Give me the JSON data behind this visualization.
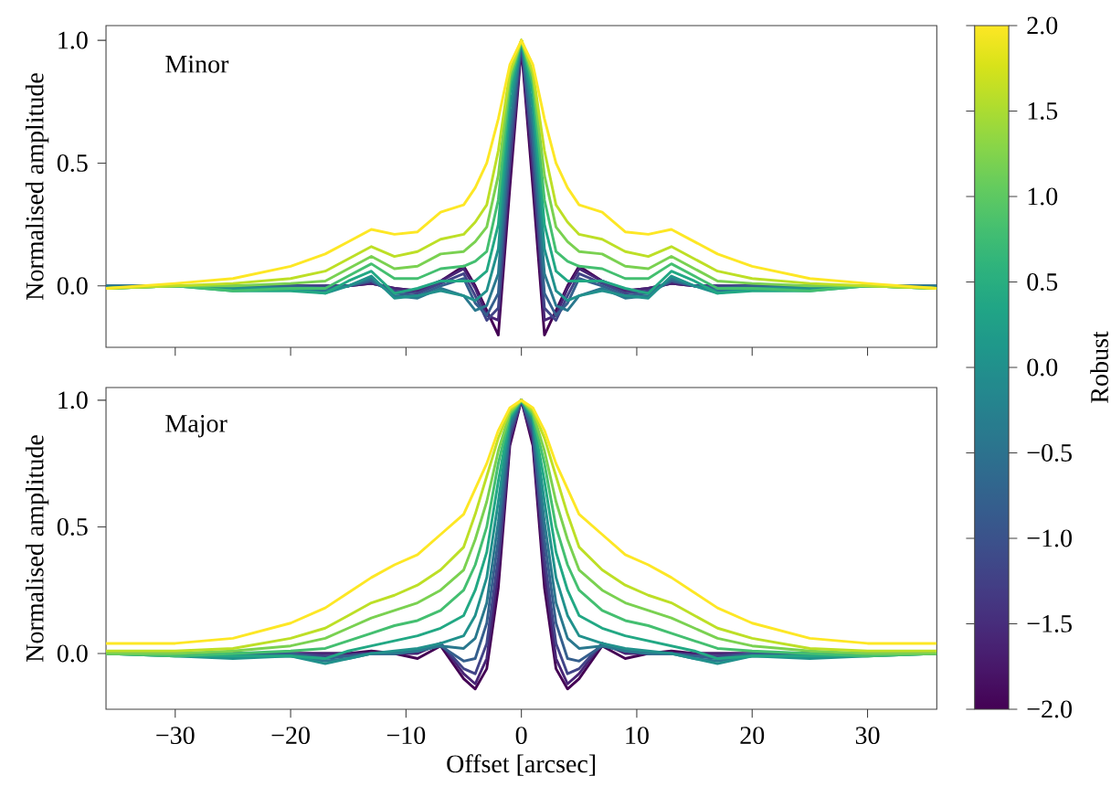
{
  "chart_data": [
    {
      "type": "line",
      "ylabel": "Normalised amplitude",
      "annotations": [
        "Minor"
      ],
      "xlim": [
        -36,
        36
      ],
      "ylim": [
        -0.25,
        1.06
      ],
      "xticks": [
        -30,
        -20,
        -10,
        0,
        10,
        20,
        30
      ],
      "yticks": [
        {
          "value": 0,
          "label": "0.0"
        },
        {
          "value": 0.5,
          "label": "0.5"
        },
        {
          "value": 1,
          "label": "1.0"
        }
      ],
      "tick_labels": "y",
      "grid": false,
      "marker": "none",
      "line_style": "solid",
      "clabel": "Robust",
      "clim": [
        -2,
        2
      ],
      "cticks": [
        {
          "value": -2,
          "label": "−2.0"
        },
        {
          "value": -1.5,
          "label": "−1.5"
        },
        {
          "value": -1,
          "label": "−1.0"
        },
        {
          "value": -0.5,
          "label": "−0.5"
        },
        {
          "value": 0,
          "label": "0.0"
        },
        {
          "value": 0.5,
          "label": "0.5"
        },
        {
          "value": 1,
          "label": "1.0"
        },
        {
          "value": 1.5,
          "label": "1.5"
        },
        {
          "value": 2,
          "label": "2.0"
        }
      ],
      "x": [
        -36,
        -30,
        -25,
        -20,
        -17,
        -15,
        -13,
        -11,
        -9,
        -7,
        -5,
        -4,
        -3,
        -2,
        -1,
        0,
        1,
        2,
        3,
        4,
        5,
        7,
        9,
        11,
        13,
        15,
        17,
        20,
        25,
        30,
        36
      ],
      "series": [
        {
          "color": "#440154",
          "values": [
            null,
            null,
            null,
            null,
            0,
            0,
            0.01,
            -0.01,
            -0.02,
            0.02,
            0.08,
            0,
            -0.1,
            -0.2,
            0.4,
            0.97,
            0.4,
            -0.2,
            -0.1,
            0,
            0.08,
            0.02,
            -0.02,
            -0.01,
            0.01,
            0,
            0,
            null,
            null,
            null,
            null
          ]
        },
        {
          "color": "#482475",
          "values": [
            null,
            null,
            0,
            0,
            0,
            0,
            0.01,
            -0.01,
            -0.02,
            0.02,
            0.07,
            -0.01,
            -0.12,
            -0.14,
            0.46,
            0.98,
            0.46,
            -0.14,
            -0.12,
            -0.01,
            0.07,
            0.02,
            -0.02,
            -0.01,
            0.01,
            0,
            0,
            0,
            0,
            null,
            null
          ]
        },
        {
          "color": "#414487",
          "values": [
            null,
            null,
            0,
            0,
            0,
            0,
            0.02,
            -0.02,
            -0.03,
            0.01,
            0.05,
            -0.04,
            -0.14,
            -0.09,
            0.52,
            0.99,
            0.52,
            -0.09,
            -0.14,
            -0.04,
            0.05,
            0.01,
            -0.03,
            -0.02,
            0.02,
            0,
            0,
            0,
            0,
            null,
            null
          ]
        },
        {
          "color": "#355f8d",
          "values": [
            0,
            0,
            0,
            0,
            -0.01,
            0,
            0.02,
            -0.03,
            -0.04,
            0,
            0.03,
            -0.07,
            -0.12,
            -0.03,
            0.58,
            1,
            0.58,
            -0.03,
            -0.12,
            -0.07,
            0.03,
            0,
            -0.04,
            -0.03,
            0.02,
            0,
            -0.01,
            0,
            0,
            0,
            0
          ]
        },
        {
          "color": "#2a788e",
          "values": [
            0,
            0,
            0,
            -0.01,
            -0.02,
            0,
            0.03,
            -0.04,
            -0.05,
            -0.01,
            -0.04,
            -0.1,
            -0.08,
            0.05,
            0.65,
            1,
            0.65,
            0.05,
            -0.08,
            -0.1,
            -0.04,
            -0.01,
            -0.05,
            -0.04,
            0.03,
            0,
            -0.02,
            -0.01,
            0,
            0,
            0
          ]
        },
        {
          "color": "#21918c",
          "values": [
            -0.01,
            0,
            -0.01,
            -0.01,
            -0.03,
            0,
            0.04,
            -0.05,
            -0.04,
            -0.02,
            -0.04,
            -0.06,
            -0.02,
            0.15,
            0.72,
            1,
            0.72,
            0.15,
            -0.02,
            -0.06,
            -0.04,
            -0.02,
            -0.04,
            -0.05,
            0.04,
            0,
            -0.03,
            -0.01,
            -0.01,
            0,
            -0.01
          ]
        },
        {
          "color": "#22a884",
          "values": [
            -0.01,
            0,
            -0.02,
            -0.02,
            -0.03,
            0.02,
            0.06,
            -0.03,
            -0.01,
            0.02,
            0.02,
            0.02,
            0.06,
            0.25,
            0.78,
            1,
            0.78,
            0.25,
            0.06,
            0.02,
            0.02,
            0.02,
            -0.01,
            -0.03,
            0.06,
            0.02,
            -0.03,
            -0.02,
            -0.02,
            0,
            -0.01
          ]
        },
        {
          "color": "#44bf70",
          "values": [
            -0.01,
            0,
            -0.02,
            -0.01,
            -0.01,
            0.04,
            0.09,
            0.03,
            0.03,
            0.07,
            0.08,
            0.1,
            0.14,
            0.35,
            0.82,
            1,
            0.82,
            0.35,
            0.14,
            0.1,
            0.08,
            0.07,
            0.03,
            0.03,
            0.09,
            0.04,
            -0.01,
            -0.01,
            -0.02,
            0,
            -0.01
          ]
        },
        {
          "color": "#7ad151",
          "values": [
            -0.01,
            0,
            0,
            0.01,
            0.02,
            0.07,
            0.12,
            0.07,
            0.08,
            0.13,
            0.14,
            0.18,
            0.24,
            0.45,
            0.85,
            1,
            0.85,
            0.45,
            0.24,
            0.18,
            0.14,
            0.13,
            0.08,
            0.07,
            0.12,
            0.07,
            0.02,
            0.01,
            0,
            0,
            -0.01
          ]
        },
        {
          "color": "#bddf26",
          "values": [
            -0.01,
            0,
            0.01,
            0.03,
            0.06,
            0.11,
            0.16,
            0.12,
            0.14,
            0.19,
            0.21,
            0.26,
            0.33,
            0.55,
            0.87,
            1,
            0.87,
            0.55,
            0.33,
            0.26,
            0.21,
            0.19,
            0.14,
            0.12,
            0.16,
            0.11,
            0.06,
            0.03,
            0.01,
            0,
            -0.01
          ]
        },
        {
          "color": "#fde725",
          "values": [
            -0.01,
            0.01,
            0.03,
            0.08,
            0.13,
            0.18,
            0.23,
            0.21,
            0.22,
            0.3,
            0.33,
            0.4,
            0.5,
            0.68,
            0.9,
            1.0,
            0.9,
            0.68,
            0.5,
            0.4,
            0.33,
            0.3,
            0.22,
            0.21,
            0.23,
            0.18,
            0.13,
            0.08,
            0.03,
            0.01,
            -0.01
          ]
        }
      ]
    },
    {
      "type": "line",
      "xlabel": "Offset [arcsec]",
      "ylabel": "Normalised amplitude",
      "annotations": [
        "Major"
      ],
      "xlim": [
        -36,
        36
      ],
      "ylim": [
        -0.22,
        1.05
      ],
      "xticks": [
        {
          "value": -30,
          "label": "−30"
        },
        {
          "value": -20,
          "label": "−20"
        },
        {
          "value": -10,
          "label": "−10"
        },
        0,
        10,
        20,
        30
      ],
      "yticks": [
        {
          "value": 0,
          "label": "0.0"
        },
        {
          "value": 0.5,
          "label": "0.5"
        },
        {
          "value": 1,
          "label": "1.0"
        }
      ],
      "grid": false,
      "marker": "none",
      "line_style": "solid",
      "x": [
        -36,
        -30,
        -25,
        -20,
        -17,
        -15,
        -13,
        -11,
        -9,
        -7,
        -5,
        -4,
        -3,
        -2,
        -1,
        0,
        1,
        2,
        3,
        4,
        5,
        7,
        9,
        11,
        13,
        15,
        17,
        20,
        25,
        30,
        36
      ],
      "series": [
        {
          "color": "#440154",
          "values": [
            null,
            null,
            0,
            0,
            0,
            0,
            0.01,
            0,
            -0.02,
            0.03,
            -0.1,
            -0.14,
            -0.06,
            0.26,
            0.82,
            1,
            0.82,
            0.26,
            -0.06,
            -0.14,
            -0.1,
            0.03,
            -0.02,
            0,
            0.01,
            0,
            0,
            0,
            0,
            null,
            null
          ]
        },
        {
          "color": "#482475",
          "values": [
            null,
            null,
            0,
            0,
            0,
            0,
            0,
            0,
            0,
            0.04,
            -0.08,
            -0.12,
            -0.02,
            0.32,
            0.84,
            1,
            0.84,
            0.32,
            -0.02,
            -0.12,
            -0.08,
            0.04,
            0,
            0,
            0,
            0,
            0,
            0,
            0,
            null,
            null
          ]
        },
        {
          "color": "#414487",
          "values": [
            null,
            null,
            0,
            0,
            -0.01,
            -0.01,
            0,
            0,
            0.01,
            0.04,
            -0.06,
            -0.08,
            0.04,
            0.38,
            0.86,
            1,
            0.86,
            0.38,
            0.04,
            -0.08,
            -0.06,
            0.04,
            0.01,
            0,
            0,
            -0.01,
            -0.01,
            0,
            0,
            null,
            null
          ]
        },
        {
          "color": "#355f8d",
          "values": [
            0,
            0,
            0,
            0,
            -0.02,
            -0.01,
            0,
            0,
            0.01,
            0.03,
            -0.03,
            -0.02,
            0.12,
            0.45,
            0.88,
            1,
            0.88,
            0.45,
            0.12,
            -0.02,
            -0.03,
            0.03,
            0.01,
            0,
            0,
            -0.01,
            -0.02,
            0,
            0,
            0,
            0
          ]
        },
        {
          "color": "#2a788e",
          "values": [
            0,
            0,
            -0.01,
            -0.01,
            -0.03,
            -0.02,
            0,
            0,
            0.01,
            0.03,
            0.02,
            0.06,
            0.2,
            0.52,
            0.9,
            1,
            0.9,
            0.52,
            0.2,
            0.06,
            0.02,
            0.03,
            0.01,
            0,
            0,
            -0.02,
            -0.03,
            -0.01,
            -0.01,
            0,
            0
          ]
        },
        {
          "color": "#21918c",
          "values": [
            0,
            -0.01,
            -0.02,
            -0.01,
            -0.04,
            -0.02,
            0,
            0.01,
            0.02,
            0.04,
            0.07,
            0.15,
            0.3,
            0.6,
            0.92,
            1,
            0.92,
            0.6,
            0.3,
            0.15,
            0.07,
            0.04,
            0.02,
            0.01,
            0,
            -0.02,
            -0.04,
            -0.01,
            -0.02,
            -0.01,
            0
          ]
        },
        {
          "color": "#22a884",
          "values": [
            0,
            -0.01,
            -0.01,
            -0.01,
            -0.02,
            0.01,
            0.03,
            0.05,
            0.07,
            0.1,
            0.15,
            0.25,
            0.4,
            0.68,
            0.93,
            1,
            0.93,
            0.68,
            0.4,
            0.25,
            0.15,
            0.1,
            0.07,
            0.05,
            0.03,
            0.01,
            -0.02,
            -0.01,
            -0.01,
            -0.01,
            0
          ]
        },
        {
          "color": "#44bf70",
          "values": [
            0,
            -0.01,
            0,
            0.01,
            0.02,
            0.05,
            0.08,
            0.11,
            0.13,
            0.17,
            0.25,
            0.35,
            0.5,
            0.75,
            0.94,
            1,
            0.94,
            0.75,
            0.5,
            0.35,
            0.25,
            0.17,
            0.13,
            0.11,
            0.08,
            0.05,
            0.02,
            0.01,
            0,
            -0.01,
            0
          ]
        },
        {
          "color": "#7ad151",
          "values": [
            0,
            0,
            0.01,
            0.03,
            0.06,
            0.1,
            0.14,
            0.17,
            0.2,
            0.25,
            0.33,
            0.45,
            0.6,
            0.8,
            0.95,
            1,
            0.95,
            0.8,
            0.6,
            0.45,
            0.33,
            0.25,
            0.2,
            0.17,
            0.14,
            0.1,
            0.06,
            0.03,
            0.01,
            0,
            0
          ]
        },
        {
          "color": "#bddf26",
          "values": [
            0.01,
            0.01,
            0.02,
            0.06,
            0.1,
            0.15,
            0.2,
            0.23,
            0.27,
            0.33,
            0.42,
            0.55,
            0.7,
            0.85,
            0.96,
            1,
            0.96,
            0.85,
            0.7,
            0.55,
            0.42,
            0.33,
            0.27,
            0.23,
            0.2,
            0.15,
            0.1,
            0.06,
            0.02,
            0.01,
            0.01
          ]
        },
        {
          "color": "#fde725",
          "values": [
            0.04,
            0.04,
            0.06,
            0.12,
            0.18,
            0.24,
            0.3,
            0.35,
            0.39,
            0.47,
            0.55,
            0.65,
            0.75,
            0.88,
            0.97,
            1,
            0.97,
            0.88,
            0.75,
            0.65,
            0.55,
            0.47,
            0.39,
            0.35,
            0.3,
            0.24,
            0.18,
            0.12,
            0.06,
            0.04,
            0.04
          ]
        }
      ]
    }
  ]
}
